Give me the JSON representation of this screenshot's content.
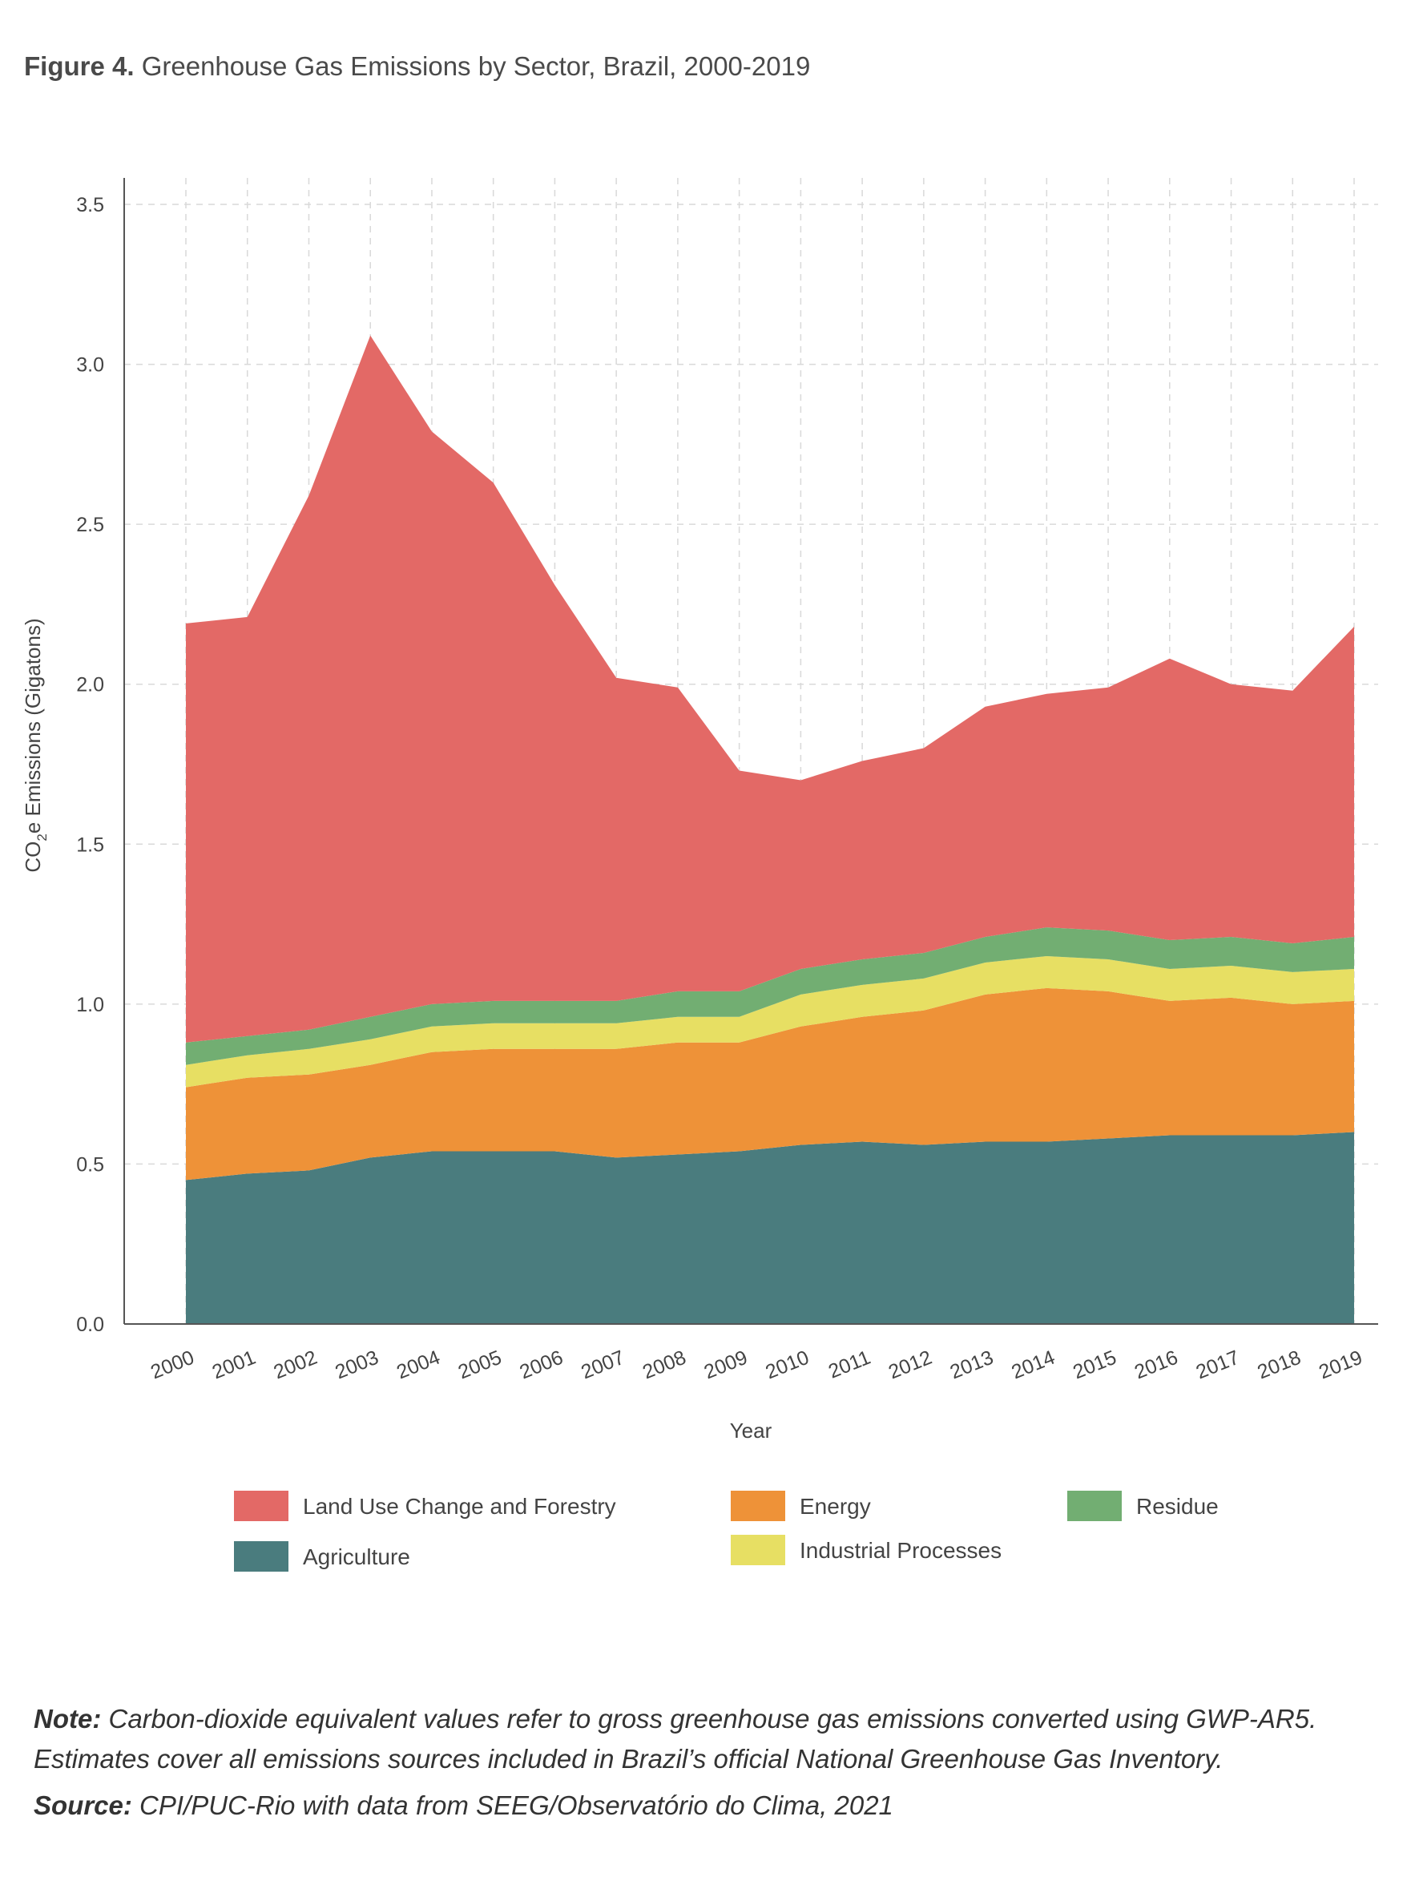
{
  "figure": {
    "label": "Figure 4.",
    "title": "Greenhouse Gas Emissions by Sector, Brazil, 2000-2019"
  },
  "chart_data": {
    "type": "area",
    "stacked": true,
    "x": [
      "2000",
      "2001",
      "2002",
      "2003",
      "2004",
      "2005",
      "2006",
      "2007",
      "2008",
      "2009",
      "2010",
      "2011",
      "2012",
      "2013",
      "2014",
      "2015",
      "2016",
      "2017",
      "2018",
      "2019"
    ],
    "xlabel": "Year",
    "ylabel_main": "CO",
    "ylabel_sub": "2",
    "ylabel_rest": "e Emissions  (Gigatons)",
    "ylim": [
      0,
      3.5
    ],
    "yticks": [
      "0.0",
      "0.5",
      "1.0",
      "1.5",
      "2.0",
      "2.5",
      "3.0",
      "3.5"
    ],
    "grid": true,
    "series": [
      {
        "name": "Agriculture",
        "color": "#4a7c7e",
        "values": [
          0.45,
          0.47,
          0.48,
          0.52,
          0.54,
          0.54,
          0.54,
          0.52,
          0.53,
          0.54,
          0.56,
          0.57,
          0.56,
          0.57,
          0.57,
          0.58,
          0.59,
          0.59,
          0.59,
          0.6
        ]
      },
      {
        "name": "Energy",
        "color": "#ee9238",
        "values": [
          0.29,
          0.3,
          0.3,
          0.29,
          0.31,
          0.32,
          0.32,
          0.34,
          0.35,
          0.34,
          0.37,
          0.39,
          0.42,
          0.46,
          0.48,
          0.46,
          0.42,
          0.43,
          0.41,
          0.41
        ]
      },
      {
        "name": "Industrial Processes",
        "color": "#e7df63",
        "values": [
          0.07,
          0.07,
          0.08,
          0.08,
          0.08,
          0.08,
          0.08,
          0.08,
          0.08,
          0.08,
          0.1,
          0.1,
          0.1,
          0.1,
          0.1,
          0.1,
          0.1,
          0.1,
          0.1,
          0.1
        ]
      },
      {
        "name": "Residue",
        "color": "#72ae72",
        "values": [
          0.07,
          0.06,
          0.06,
          0.07,
          0.07,
          0.07,
          0.07,
          0.07,
          0.08,
          0.08,
          0.08,
          0.08,
          0.08,
          0.08,
          0.09,
          0.09,
          0.09,
          0.09,
          0.09,
          0.1
        ]
      },
      {
        "name": "Land Use Change and Forestry",
        "color": "#e36966",
        "values": [
          1.31,
          1.31,
          1.67,
          2.13,
          1.79,
          1.62,
          1.3,
          1.01,
          0.95,
          0.69,
          0.59,
          0.62,
          0.64,
          0.72,
          0.73,
          0.76,
          0.88,
          0.79,
          0.79,
          0.97
        ]
      }
    ],
    "legend": [
      {
        "name": "Land Use Change and Forestry",
        "color": "#e36966"
      },
      {
        "name": "Energy",
        "color": "#ee9238"
      },
      {
        "name": "Residue",
        "color": "#72ae72"
      },
      {
        "name": "Agriculture",
        "color": "#4a7c7e"
      },
      {
        "name": "Industrial Processes",
        "color": "#e7df63"
      }
    ],
    "legend_position": "bottom"
  },
  "note": {
    "label": "Note:",
    "text": " Carbon-dioxide equivalent values refer to gross greenhouse gas emissions converted using GWP-AR5. Estimates cover all emissions sources included in Brazil’s official National Greenhouse Gas Inventory."
  },
  "source": {
    "label": "Source:",
    "text": " CPI/PUC-Rio with data from SEEG/Observatório do Clima, 2021"
  }
}
